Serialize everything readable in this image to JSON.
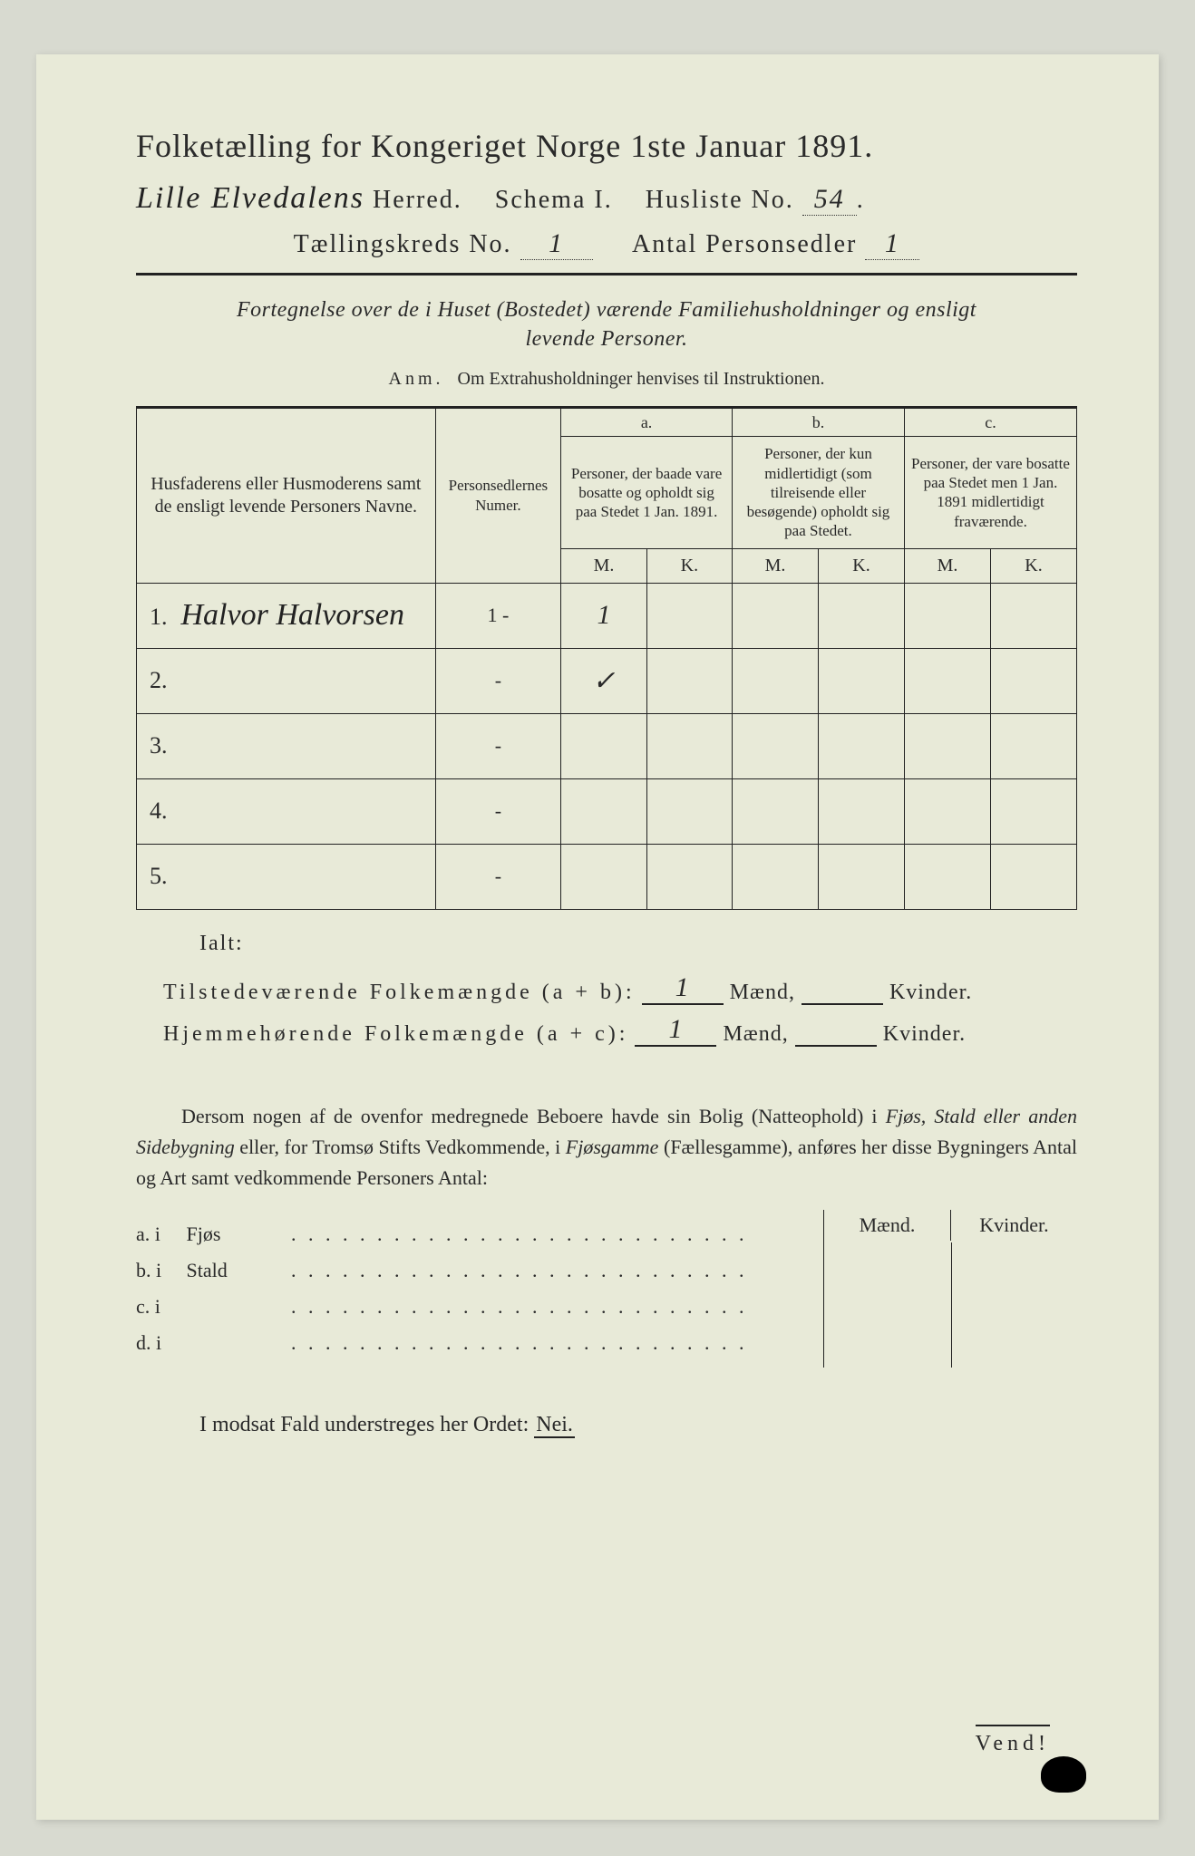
{
  "header": {
    "title": "Folketælling for Kongeriget Norge 1ste Januar 1891.",
    "herred_hw": "Lille Elvedalens",
    "herred_label": "Herred.",
    "schema_label": "Schema I.",
    "husliste_label": "Husliste No.",
    "husliste_no": "54",
    "kreds_label": "Tællingskreds No.",
    "kreds_no": "1",
    "antal_label": "Antal Personsedler",
    "antal_no": "1"
  },
  "desc": {
    "line1": "Fortegnelse over de i Huset (Bostedet) værende Familiehusholdninger og ensligt",
    "line2": "levende Personer.",
    "anm_label": "Anm.",
    "anm_text": "Om Extrahusholdninger henvises til Instruktionen."
  },
  "table": {
    "col_name": "Husfaderens eller Husmoderens samt de ensligt levende Personers Navne.",
    "col_num": "Personsedlernes Numer.",
    "col_a_letter": "a.",
    "col_a": "Personer, der baade vare bosatte og opholdt sig paa Stedet 1 Jan. 1891.",
    "col_b_letter": "b.",
    "col_b": "Personer, der kun midlertidigt (som tilreisende eller besøgende) opholdt sig paa Stedet.",
    "col_c_letter": "c.",
    "col_c": "Personer, der vare bosatte paa Stedet men 1 Jan. 1891 midlertidigt fraværende.",
    "m": "M.",
    "k": "K.",
    "rows": [
      {
        "n": "1.",
        "name": "Halvor Halvorsen",
        "num": "1 -",
        "a_m": "1",
        "a_k": "",
        "b_m": "",
        "b_k": "",
        "c_m": "",
        "c_k": ""
      },
      {
        "n": "2.",
        "name": "",
        "num": "-",
        "a_m": "✓",
        "a_k": "",
        "b_m": "",
        "b_k": "",
        "c_m": "",
        "c_k": ""
      },
      {
        "n": "3.",
        "name": "",
        "num": "-",
        "a_m": "",
        "a_k": "",
        "b_m": "",
        "b_k": "",
        "c_m": "",
        "c_k": ""
      },
      {
        "n": "4.",
        "name": "",
        "num": "-",
        "a_m": "",
        "a_k": "",
        "b_m": "",
        "b_k": "",
        "c_m": "",
        "c_k": ""
      },
      {
        "n": "5.",
        "name": "",
        "num": "-",
        "a_m": "",
        "a_k": "",
        "b_m": "",
        "b_k": "",
        "c_m": "",
        "c_k": ""
      }
    ]
  },
  "totals": {
    "ialt": "Ialt:",
    "line1_label": "Tilstedeværende Folkemængde (a + b):",
    "line2_label": "Hjemmehørende Folkemængde (a + c):",
    "maend": "Mænd,",
    "kvinder": "Kvinder.",
    "v1_m": "1",
    "v1_k": "",
    "v2_m": "1",
    "v2_k": ""
  },
  "para": {
    "text1": "Dersom nogen af de ovenfor medregnede Beboere havde sin Bolig (Natteophold) i ",
    "em1": "Fjøs, Stald eller anden Sidebygning",
    "text2": " eller, for Tromsø Stifts Vedkommende, i ",
    "em2": "Fjøsgamme",
    "text3": " (Fællesgamme), anføres her disse Bygningers Antal og Art samt vedkommende Personers Antal:"
  },
  "mk": {
    "maend": "Mænd.",
    "kvinder": "Kvinder.",
    "rows": [
      {
        "lead": "a.  i",
        "word": "Fjøs"
      },
      {
        "lead": "b.  i",
        "word": "Stald"
      },
      {
        "lead": "c.  i",
        "word": ""
      },
      {
        "lead": "d.  i",
        "word": ""
      }
    ]
  },
  "nei": {
    "text": "I modsat Fald understreges her Ordet:",
    "word": "Nei."
  },
  "vend": "Vend!"
}
